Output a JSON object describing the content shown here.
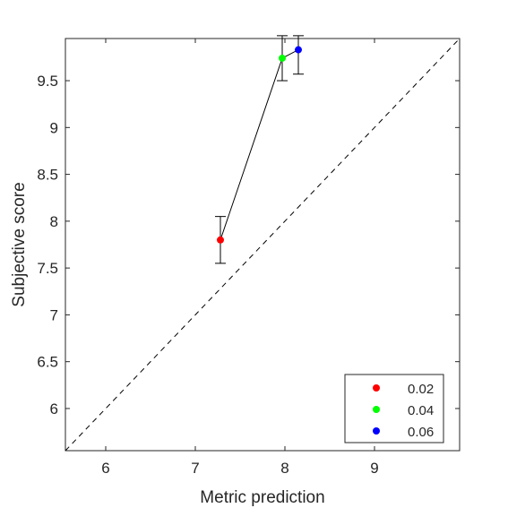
{
  "chart_data": {
    "type": "scatter",
    "xlabel": "Metric prediction",
    "ylabel": "Subjective score",
    "xlim": [
      5.55,
      9.95
    ],
    "ylim": [
      5.55,
      9.95
    ],
    "xticks": [
      6,
      7,
      8,
      9
    ],
    "yticks": [
      6,
      6.5,
      7,
      7.5,
      8,
      8.5,
      9,
      9.5
    ],
    "xtick_labels": [
      "6",
      "7",
      "8",
      "9"
    ],
    "ytick_labels": [
      "6",
      "6.5",
      "7",
      "7.5",
      "8",
      "8.5",
      "9",
      "9.5"
    ],
    "grid": false,
    "legend_position": "bottom-right",
    "reference_line": {
      "style": "dashed",
      "x": [
        5.55,
        9.95
      ],
      "y": [
        5.55,
        9.95
      ]
    },
    "series": [
      {
        "name": "0.02",
        "color": "#ff0000",
        "x": 7.28,
        "y": 7.8,
        "err_low": 7.55,
        "err_high": 8.05
      },
      {
        "name": "0.04",
        "color": "#00ff00",
        "x": 7.97,
        "y": 9.74,
        "err_low": 9.5,
        "err_high": 9.98
      },
      {
        "name": "0.06",
        "color": "#0000ff",
        "x": 8.15,
        "y": 9.83,
        "err_low": 9.57,
        "err_high": 9.98
      }
    ]
  }
}
